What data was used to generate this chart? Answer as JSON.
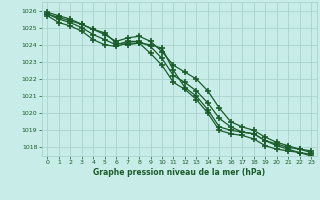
{
  "title": "Graphe pression niveau de la mer (hPa)",
  "bg_color": "#c8ece8",
  "grid_color": "#a8d4cc",
  "line_color": "#1a5c2a",
  "xlim": [
    -0.5,
    23.5
  ],
  "ylim": [
    1017.5,
    1026.5
  ],
  "yticks": [
    1018,
    1019,
    1020,
    1021,
    1022,
    1023,
    1024,
    1025,
    1026
  ],
  "xticks": [
    0,
    1,
    2,
    3,
    4,
    5,
    6,
    7,
    8,
    9,
    10,
    11,
    12,
    13,
    14,
    15,
    16,
    17,
    18,
    19,
    20,
    21,
    22,
    23
  ],
  "series": [
    [
      1025.8,
      1025.6,
      1025.4,
      1025.2,
      1024.9,
      1024.7,
      1024.1,
      1024.0,
      1024.1,
      1024.0,
      1023.8,
      1022.5,
      1021.5,
      1021.0,
      1020.2,
      1019.2,
      1019.0,
      1018.9,
      1018.8,
      1018.4,
      1018.2,
      1018.0,
      1017.9,
      1017.8
    ],
    [
      1025.9,
      1025.7,
      1025.5,
      1025.2,
      1024.9,
      1024.6,
      1024.2,
      1024.4,
      1024.5,
      1024.2,
      1023.6,
      1022.8,
      1022.4,
      1022.0,
      1021.3,
      1020.3,
      1019.5,
      1019.2,
      1019.0,
      1018.6,
      1018.3,
      1018.1,
      1017.9,
      1017.7
    ],
    [
      1025.8,
      1025.5,
      1025.3,
      1025.0,
      1024.6,
      1024.3,
      1024.0,
      1024.2,
      1024.2,
      1023.9,
      1023.2,
      1022.2,
      1021.8,
      1021.3,
      1020.6,
      1019.7,
      1019.2,
      1018.9,
      1018.8,
      1018.4,
      1018.1,
      1017.9,
      1017.7,
      1017.6
    ],
    [
      1025.7,
      1025.3,
      1025.1,
      1024.8,
      1024.3,
      1024.0,
      1023.9,
      1024.1,
      1024.1,
      1023.5,
      1022.8,
      1021.8,
      1021.4,
      1020.8,
      1020.0,
      1019.0,
      1018.8,
      1018.7,
      1018.5,
      1018.1,
      1017.9,
      1017.8,
      1017.7,
      1017.5
    ]
  ],
  "marker": "+",
  "markersize": 4,
  "linewidth": 0.9,
  "markeredgewidth": 1.2
}
